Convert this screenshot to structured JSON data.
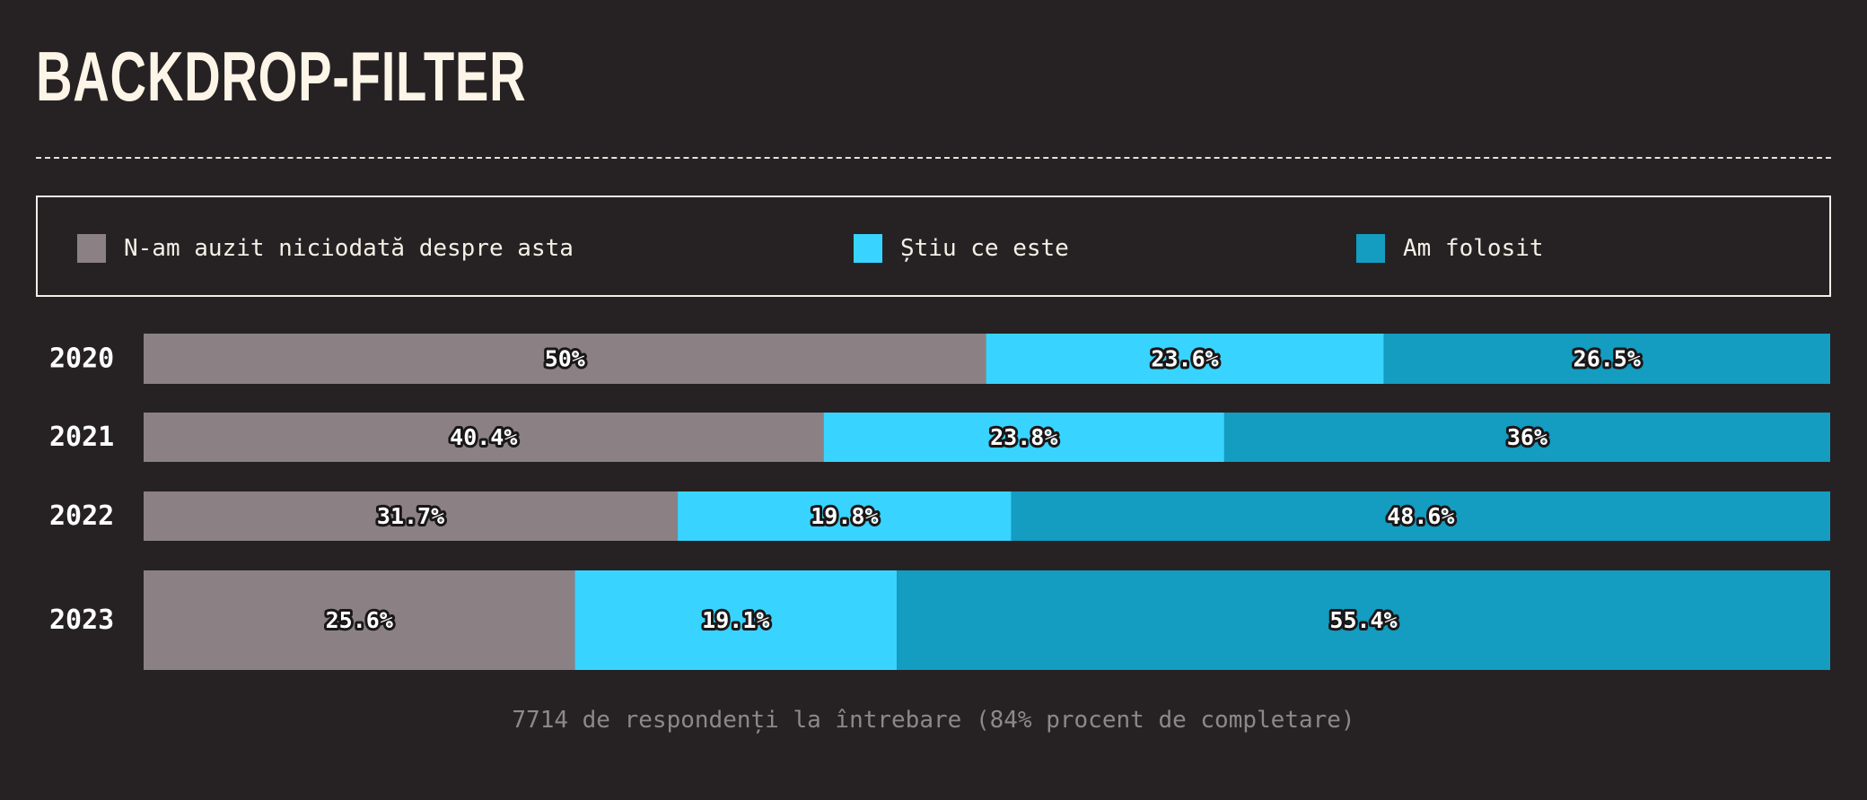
{
  "title": "BACKDROP-FILTER",
  "legend": [
    {
      "label": "N-am auzit niciodată despre asta",
      "color": "#8b8185"
    },
    {
      "label": "Știu ce este",
      "color": "#38d4ff"
    },
    {
      "label": "Am folosit",
      "color": "#149cc1"
    }
  ],
  "chart_data": {
    "type": "bar",
    "orientation": "horizontal",
    "stacked": true,
    "categories": [
      "2020",
      "2021",
      "2022",
      "2023"
    ],
    "series": [
      {
        "name": "N-am auzit niciodată despre asta",
        "values": [
          50,
          40.4,
          31.7,
          25.6
        ],
        "labels": [
          "50%",
          "40.4%",
          "31.7%",
          "25.6%"
        ]
      },
      {
        "name": "Știu ce este",
        "values": [
          23.6,
          23.8,
          19.8,
          19.1
        ],
        "labels": [
          "23.6%",
          "23.8%",
          "19.8%",
          "19.1%"
        ]
      },
      {
        "name": "Am folosit",
        "values": [
          26.5,
          36,
          48.6,
          55.4
        ],
        "labels": [
          "26.5%",
          "36%",
          "48.6%",
          "55.4%"
        ]
      }
    ],
    "xlim": [
      0,
      100
    ],
    "title": "BACKDROP-FILTER",
    "xlabel": "",
    "ylabel": "",
    "grid": false,
    "legend_position": "top"
  },
  "footnote": "7714 de respondenți la întrebare (84% procent de completare)"
}
